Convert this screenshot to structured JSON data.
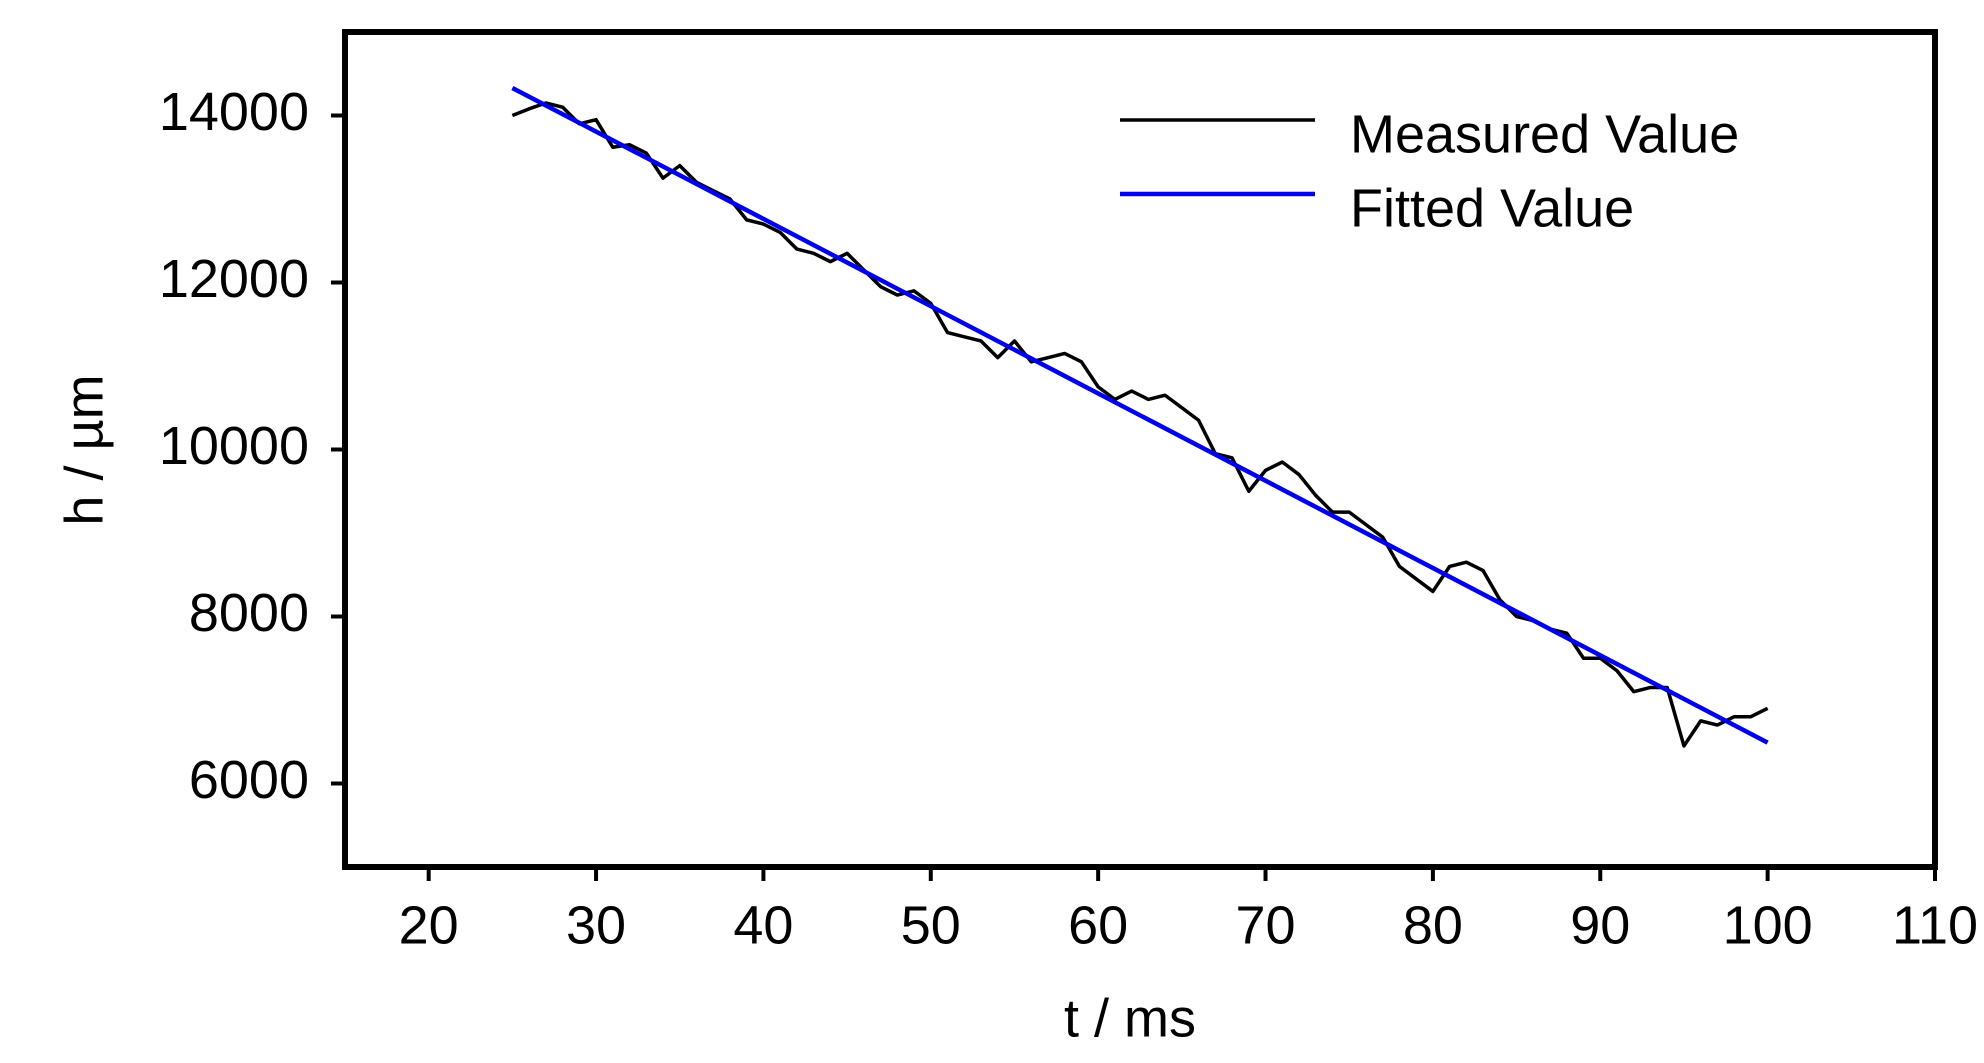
{
  "chart_data": {
    "type": "line",
    "x_label": "t / ms",
    "y_label": "h / µm",
    "xlim": [
      15,
      110
    ],
    "xticks": [
      20,
      30,
      40,
      50,
      60,
      70,
      80,
      90,
      100,
      110
    ],
    "ylim": [
      5000,
      15000
    ],
    "yticks": [
      6000,
      8000,
      10000,
      12000,
      14000
    ],
    "legend": "upper right",
    "grid": false,
    "series": [
      {
        "name": "Measured Value",
        "color": "#000000",
        "x": [
          25,
          26,
          27,
          28,
          29,
          30,
          31,
          32,
          33,
          34,
          35,
          36,
          37,
          38,
          39,
          40,
          41,
          42,
          43,
          44,
          45,
          46,
          47,
          48,
          49,
          50,
          51,
          52,
          53,
          54,
          55,
          56,
          57,
          58,
          59,
          60,
          61,
          62,
          63,
          64,
          65,
          66,
          67,
          68,
          69,
          70,
          71,
          72,
          73,
          74,
          75,
          76,
          77,
          78,
          79,
          80,
          81,
          82,
          83,
          84,
          85,
          86,
          87,
          88,
          89,
          90,
          91,
          92,
          93,
          94,
          95,
          96,
          97,
          98,
          99,
          100
        ],
        "values": [
          14000,
          14080,
          14150,
          14100,
          13900,
          13950,
          13620,
          13650,
          13550,
          13250,
          13400,
          13200,
          13100,
          13000,
          12750,
          12700,
          12600,
          12400,
          12350,
          12250,
          12350,
          12150,
          11950,
          11850,
          11900,
          11750,
          11400,
          11350,
          11300,
          11100,
          11300,
          11050,
          11100,
          11150,
          11050,
          10750,
          10600,
          10700,
          10600,
          10650,
          10500,
          10350,
          9950,
          9900,
          9500,
          9750,
          9850,
          9700,
          9450,
          9250,
          9250,
          9100,
          8950,
          8600,
          8450,
          8300,
          8600,
          8650,
          8550,
          8200,
          8000,
          7950,
          7850,
          7800,
          7500,
          7500,
          7350,
          7100,
          7150,
          7150,
          6450,
          6750,
          6700,
          6800,
          6800,
          6900
        ]
      },
      {
        "name": "Fitted Value",
        "color": "#0000ee",
        "x": [
          25,
          100
        ],
        "values": [
          14330,
          6490
        ]
      }
    ]
  }
}
